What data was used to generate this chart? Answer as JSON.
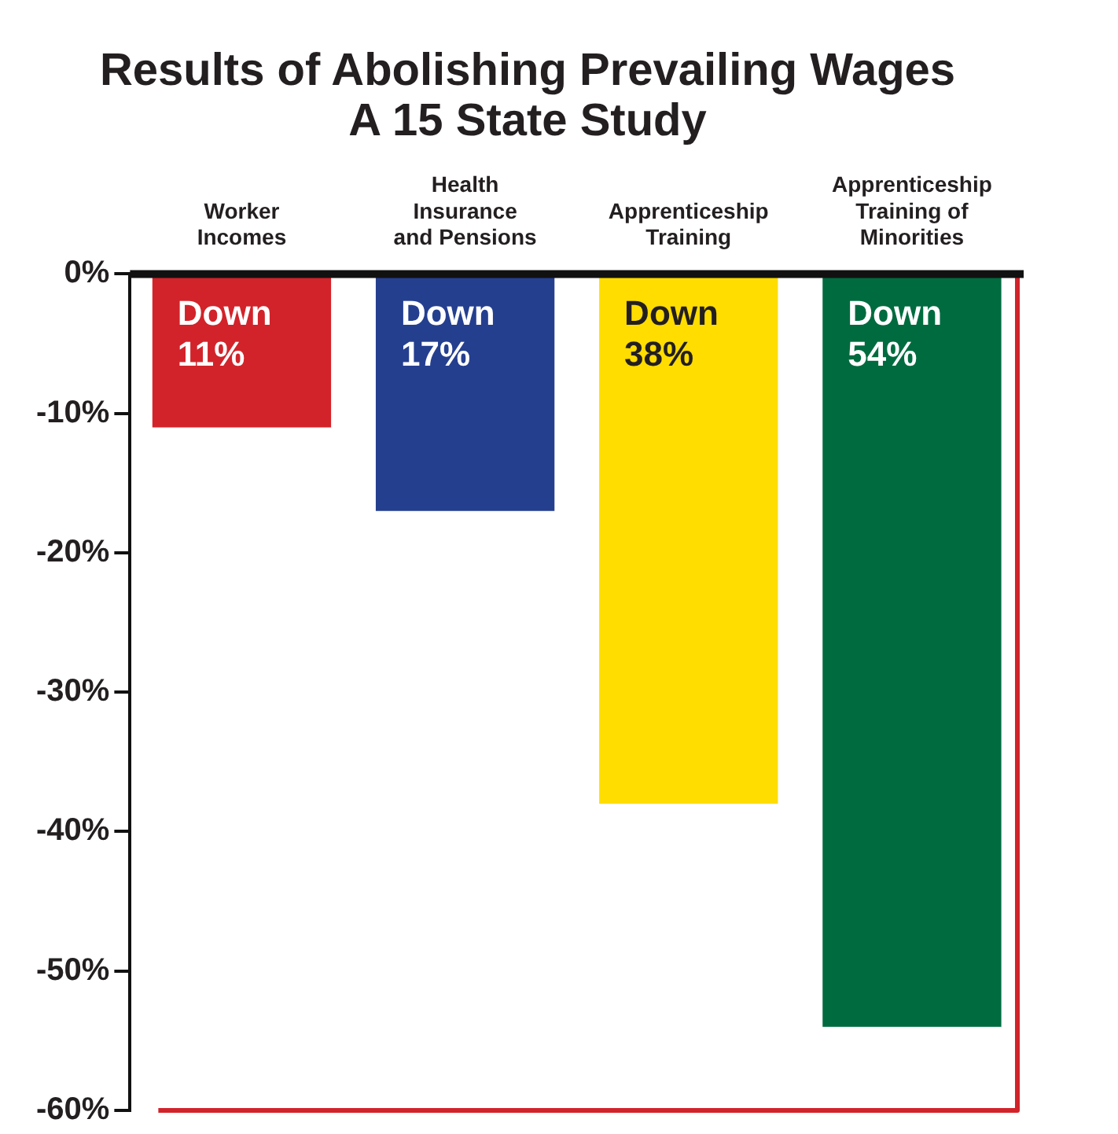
{
  "chart_data": {
    "type": "bar",
    "title": "Results of Abolishing Prevailing Wages\nA 15 State Study",
    "categories": [
      "Worker\nIncomes",
      "Health\nInsurance\nand Pensions",
      "Apprenticeship\nTraining",
      "Apprenticeship\nTraining of\nMinorities"
    ],
    "values": [
      -11,
      -17,
      -38,
      -54
    ],
    "colors": [
      "#d2232a",
      "#253f8f",
      "#ffdd00",
      "#006b3f"
    ],
    "value_labels": [
      "Down 11%",
      "Down 17%",
      "Down 38%",
      "Down 54%"
    ],
    "ylim": [
      -60,
      0
    ],
    "yticks": [
      {
        "value": 0,
        "label": "0%"
      },
      {
        "value": -10,
        "label": "-10%"
      },
      {
        "value": -20,
        "label": "-20%"
      },
      {
        "value": -30,
        "label": "-30%"
      },
      {
        "value": -40,
        "label": "-40%"
      },
      {
        "value": -50,
        "label": "-50%"
      },
      {
        "value": -60,
        "label": "-60%"
      }
    ],
    "legend": false
  }
}
